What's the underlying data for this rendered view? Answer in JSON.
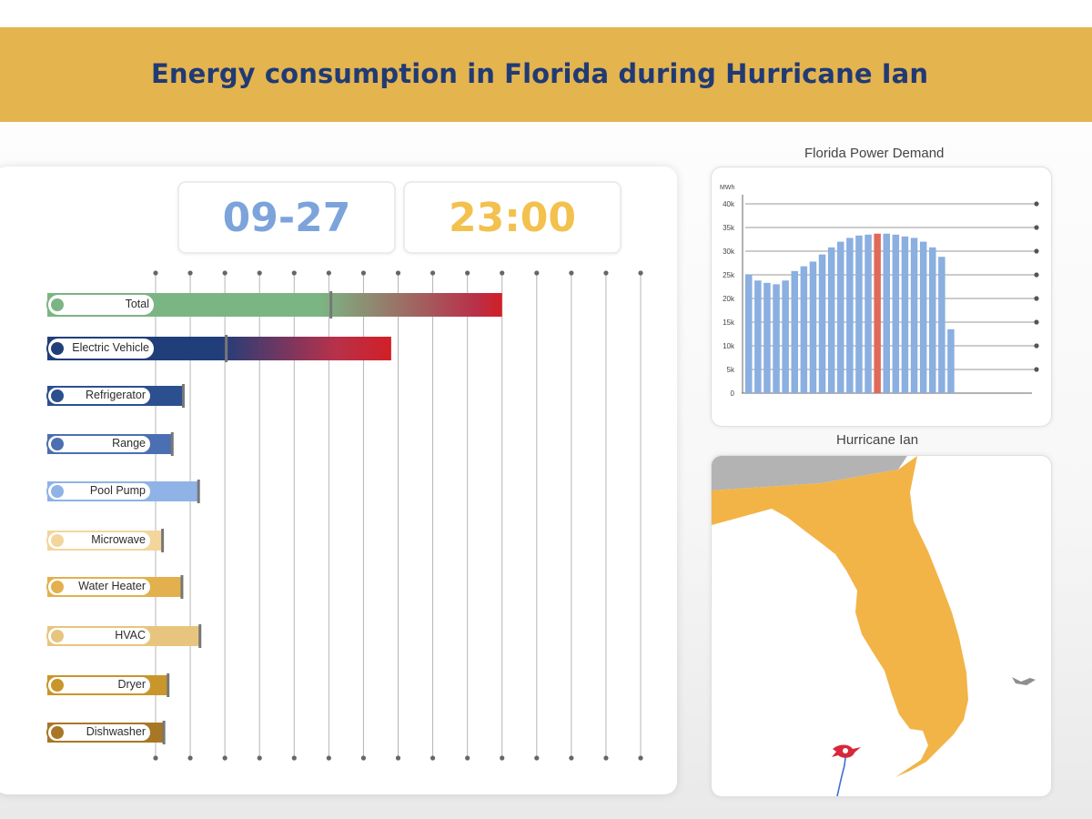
{
  "header": {
    "title": "Energy consumption in Florida during Hurricane Ian"
  },
  "counters": {
    "date": "09-27",
    "time": "23:00"
  },
  "colors": {
    "banner": "#e4b44f",
    "title": "#203a74",
    "date": "#7da3db",
    "time": "#f2c14e",
    "demand_bar": "#8aafe0",
    "demand_highlight": "#e06a5a",
    "state_fill": "#f2b447",
    "neighbor_fill": "#b3b3b3",
    "hurricane_marker": "#d8283b"
  },
  "chart_data": [
    {
      "type": "bar",
      "orientation": "horizontal",
      "title": "",
      "xlabel": "",
      "ylabel": "",
      "grid": true,
      "categories": [
        "Total",
        "Electric Vehicle",
        "Refrigerator",
        "Range",
        "Pool Pump",
        "Microwave",
        "Water Heater",
        "HVAC",
        "Dryer",
        "Dishwasher"
      ],
      "values": [
        5.0,
        3.4,
        0.4,
        0.24,
        0.62,
        0.1,
        0.38,
        0.64,
        0.18,
        0.12
      ],
      "reference_marks": [
        2.53,
        1.02,
        0.4,
        0.24,
        0.62,
        0.1,
        0.38,
        0.64,
        0.18,
        0.12
      ],
      "series_colors": [
        "#7bb583",
        "#203e7a",
        "#2c4f8f",
        "#4c6fb3",
        "#8fb3e6",
        "#f3d69c",
        "#e3b04e",
        "#e8c57e",
        "#c9962b",
        "#a87725"
      ],
      "bar_gradient_end": "#d21f26",
      "xlim": [
        0,
        7.0
      ]
    },
    {
      "type": "bar",
      "title": "Florida Power Demand",
      "ylabel": "MWh",
      "xlabel": "",
      "ylim": [
        0,
        40000
      ],
      "yticks": [
        "0",
        "5k",
        "10k",
        "15k",
        "20k",
        "25k",
        "30k",
        "35k",
        "40k"
      ],
      "grid": true,
      "highlight_index": 14,
      "values": [
        25000,
        23800,
        23300,
        23000,
        23800,
        25800,
        26800,
        27800,
        29300,
        30800,
        32000,
        32800,
        33300,
        33500,
        33700,
        33700,
        33500,
        33100,
        32800,
        32000,
        30800,
        28800,
        13500
      ]
    }
  ],
  "map": {
    "title": "Hurricane Ian",
    "region": "Florida",
    "marker": "hurricane-icon"
  }
}
